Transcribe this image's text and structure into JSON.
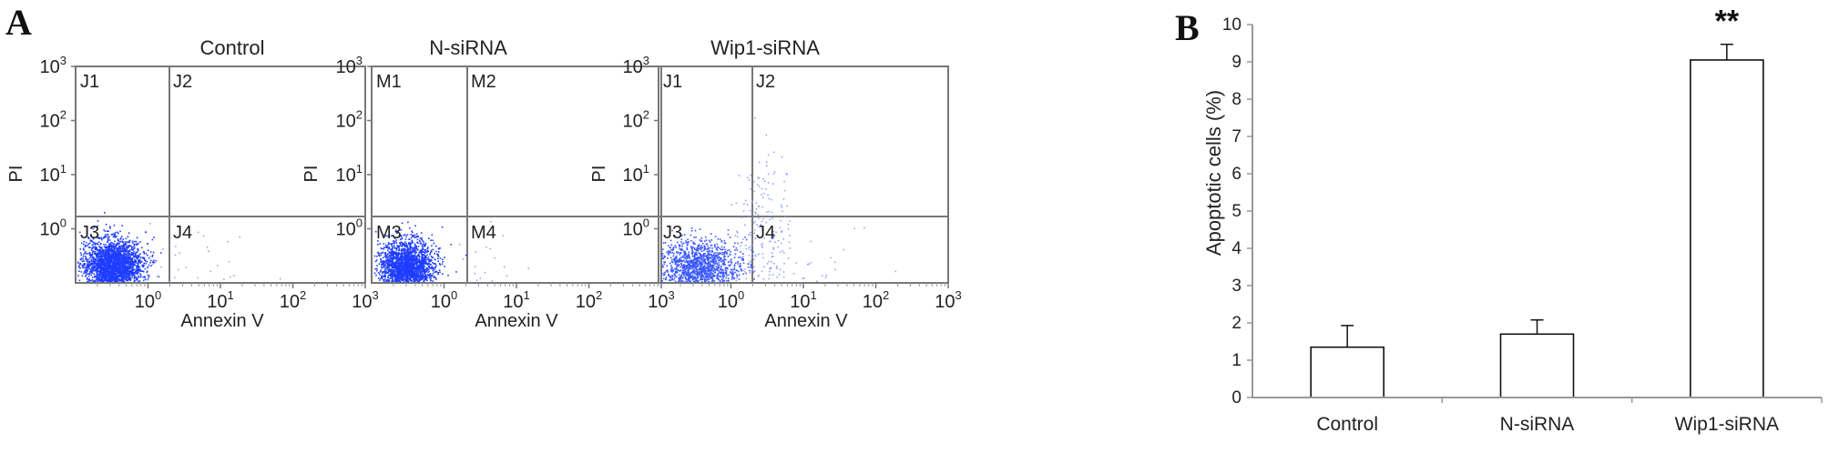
{
  "panels": {
    "a_label": "A",
    "b_label": "B"
  },
  "chart_data": [
    {
      "type": "scatter",
      "title": "Control",
      "xlabel": "Annexin V",
      "ylabel": "PI",
      "x_scale": "log",
      "y_scale": "log",
      "xlim": [
        0.1,
        1000
      ],
      "ylim": [
        0.1,
        1000
      ],
      "x_ticks": [
        {
          "base": "10",
          "exp": "0"
        },
        {
          "base": "10",
          "exp": "1"
        },
        {
          "base": "10",
          "exp": "2"
        },
        {
          "base": "10",
          "exp": "3"
        }
      ],
      "y_ticks": [
        {
          "base": "10",
          "exp": "0"
        },
        {
          "base": "10",
          "exp": "1"
        },
        {
          "base": "10",
          "exp": "2"
        },
        {
          "base": "10",
          "exp": "3"
        }
      ],
      "quadrant_labels": [
        "J1",
        "J2",
        "J3",
        "J4"
      ],
      "color": "#1f3dff",
      "population": {
        "center_x": 0.32,
        "center_y": 0.21,
        "count": 2600
      }
    },
    {
      "type": "scatter",
      "title": "N-siRNA",
      "xlabel": "Annexin V",
      "ylabel": "PI",
      "x_scale": "log",
      "y_scale": "log",
      "xlim": [
        0.1,
        1000
      ],
      "ylim": [
        0.1,
        1000
      ],
      "x_ticks": [
        {
          "base": "10",
          "exp": "0"
        },
        {
          "base": "10",
          "exp": "1"
        },
        {
          "base": "10",
          "exp": "2"
        },
        {
          "base": "10",
          "exp": "3"
        }
      ],
      "y_ticks": [
        {
          "base": "10",
          "exp": "0"
        },
        {
          "base": "10",
          "exp": "1"
        },
        {
          "base": "10",
          "exp": "2"
        },
        {
          "base": "10",
          "exp": "3"
        }
      ],
      "quadrant_labels": [
        "M1",
        "M2",
        "M3",
        "M4"
      ],
      "color": "#1f3dff",
      "population": {
        "center_x": 0.3,
        "center_y": 0.2,
        "count": 2200
      }
    },
    {
      "type": "scatter",
      "title": "Wip1-siRNA",
      "xlabel": "Annexin V",
      "ylabel": "PI",
      "x_scale": "log",
      "y_scale": "log",
      "xlim": [
        0.1,
        1000
      ],
      "ylim": [
        0.1,
        1000
      ],
      "x_ticks": [
        {
          "base": "10",
          "exp": "0"
        },
        {
          "base": "10",
          "exp": "1"
        },
        {
          "base": "10",
          "exp": "2"
        },
        {
          "base": "10",
          "exp": "3"
        }
      ],
      "y_ticks": [
        {
          "base": "10",
          "exp": "0"
        },
        {
          "base": "10",
          "exp": "1"
        },
        {
          "base": "10",
          "exp": "2"
        },
        {
          "base": "10",
          "exp": "3"
        }
      ],
      "quadrant_labels": [
        "J1",
        "J2",
        "J3",
        "J4"
      ],
      "color": "#3a58ff",
      "population": {
        "center_x": 0.35,
        "center_y": 0.2,
        "count": 1400
      }
    },
    {
      "type": "bar",
      "categories": [
        "Control",
        "N-siRNA",
        "Wip1-siRNA"
      ],
      "values": [
        1.35,
        1.7,
        9.05
      ],
      "errors": [
        0.58,
        0.38,
        0.42
      ],
      "ylabel": "Apoptotic cells (%)",
      "ylim": [
        0,
        10
      ],
      "yticks": [
        "0",
        "1",
        "2",
        "3",
        "4",
        "5",
        "6",
        "7",
        "8",
        "9",
        "10"
      ],
      "annotations": [
        {
          "category": "Wip1-siRNA",
          "text": "**"
        }
      ]
    }
  ]
}
